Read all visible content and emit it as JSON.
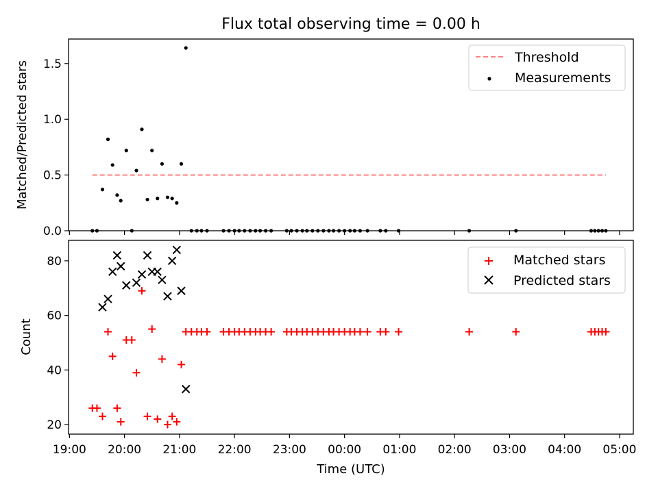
{
  "figure": {
    "title": "Flux total observing time = 0.00 h",
    "xlabel": "Time (UTC)"
  },
  "chart_data": [
    {
      "type": "scatter",
      "ylabel": "Matched/Predicted stars",
      "ylim": [
        0,
        1.72
      ],
      "yticks": [
        0.0,
        0.5,
        1.0,
        1.5
      ],
      "ytick_labels": [
        "0.0",
        "0.5",
        "1.0",
        "1.5"
      ],
      "legend_position": "top-right",
      "threshold": {
        "name": "Threshold",
        "value": 0.5,
        "x_start": "19:25",
        "x_end": "04:45",
        "color": "#ff7f7f",
        "style": "dashed"
      },
      "series": [
        {
          "name": "Measurements",
          "marker": "dot",
          "color": "#000000",
          "points": [
            [
              "19:25",
              0.0
            ],
            [
              "19:30",
              0.0
            ],
            [
              "19:36",
              0.37
            ],
            [
              "19:42",
              0.82
            ],
            [
              "19:47",
              0.59
            ],
            [
              "19:52",
              0.32
            ],
            [
              "19:56",
              0.27
            ],
            [
              "20:02",
              0.72
            ],
            [
              "20:08",
              0.0
            ],
            [
              "20:13",
              0.54
            ],
            [
              "20:19",
              0.91
            ],
            [
              "20:25",
              0.28
            ],
            [
              "20:30",
              0.72
            ],
            [
              "20:36",
              0.29
            ],
            [
              "20:41",
              0.6
            ],
            [
              "20:47",
              0.3
            ],
            [
              "20:52",
              0.29
            ],
            [
              "20:57",
              0.25
            ],
            [
              "21:02",
              0.6
            ],
            [
              "21:07",
              1.64
            ],
            [
              "21:13",
              0.0
            ],
            [
              "21:19",
              0.0
            ],
            [
              "21:24",
              0.0
            ],
            [
              "21:30",
              0.0
            ],
            [
              "21:48",
              0.0
            ],
            [
              "21:54",
              0.0
            ],
            [
              "22:00",
              0.0
            ],
            [
              "22:05",
              0.0
            ],
            [
              "22:11",
              0.0
            ],
            [
              "22:17",
              0.0
            ],
            [
              "22:23",
              0.0
            ],
            [
              "22:28",
              0.0
            ],
            [
              "22:34",
              0.0
            ],
            [
              "22:40",
              0.0
            ],
            [
              "22:57",
              0.0
            ],
            [
              "23:02",
              0.0
            ],
            [
              "23:08",
              0.0
            ],
            [
              "23:14",
              0.0
            ],
            [
              "23:19",
              0.0
            ],
            [
              "23:25",
              0.0
            ],
            [
              "23:31",
              0.0
            ],
            [
              "23:37",
              0.0
            ],
            [
              "23:43",
              0.0
            ],
            [
              "23:48",
              0.0
            ],
            [
              "23:54",
              0.0
            ],
            [
              "00:00",
              0.0
            ],
            [
              "00:06",
              0.0
            ],
            [
              "00:11",
              0.0
            ],
            [
              "00:17",
              0.0
            ],
            [
              "00:25",
              0.0
            ],
            [
              "00:39",
              0.0
            ],
            [
              "00:45",
              0.0
            ],
            [
              "00:59",
              0.0
            ],
            [
              "02:16",
              0.0
            ],
            [
              "03:07",
              0.0
            ],
            [
              "04:29",
              0.0
            ],
            [
              "04:33",
              0.0
            ],
            [
              "04:37",
              0.0
            ],
            [
              "04:41",
              0.0
            ],
            [
              "04:45",
              0.0
            ]
          ]
        }
      ]
    },
    {
      "type": "scatter",
      "ylabel": "Count",
      "ylim": [
        16.5,
        87.5
      ],
      "yticks": [
        20,
        40,
        60,
        80
      ],
      "ytick_labels": [
        "20",
        "40",
        "60",
        "80"
      ],
      "xlim": [
        "19:00",
        "05:15"
      ],
      "xticks": [
        "19:00",
        "20:00",
        "21:00",
        "22:00",
        "23:00",
        "00:00",
        "01:00",
        "02:00",
        "03:00",
        "04:00",
        "05:00"
      ],
      "xtick_labels": [
        "19:00",
        "20:00",
        "21:00",
        "22:00",
        "23:00",
        "00:00",
        "01:00",
        "02:00",
        "03:00",
        "04:00",
        "05:00"
      ],
      "legend_position": "top-right",
      "series": [
        {
          "name": "Matched stars",
          "marker": "plus",
          "color": "#ff0000",
          "points": [
            [
              "19:25",
              26
            ],
            [
              "19:30",
              26
            ],
            [
              "19:36",
              23
            ],
            [
              "19:42",
              54
            ],
            [
              "19:47",
              45
            ],
            [
              "19:52",
              26
            ],
            [
              "19:56",
              21
            ],
            [
              "20:02",
              51
            ],
            [
              "20:08",
              51
            ],
            [
              "20:13",
              39
            ],
            [
              "20:19",
              69
            ],
            [
              "20:25",
              23
            ],
            [
              "20:30",
              55
            ],
            [
              "20:36",
              22
            ],
            [
              "20:41",
              44
            ],
            [
              "20:47",
              20
            ],
            [
              "20:52",
              23
            ],
            [
              "20:57",
              21
            ],
            [
              "21:02",
              42
            ],
            [
              "21:07",
              54
            ],
            [
              "21:13",
              54
            ],
            [
              "21:19",
              54
            ],
            [
              "21:24",
              54
            ],
            [
              "21:30",
              54
            ],
            [
              "21:48",
              54
            ],
            [
              "21:54",
              54
            ],
            [
              "22:00",
              54
            ],
            [
              "22:05",
              54
            ],
            [
              "22:11",
              54
            ],
            [
              "22:17",
              54
            ],
            [
              "22:23",
              54
            ],
            [
              "22:28",
              54
            ],
            [
              "22:34",
              54
            ],
            [
              "22:40",
              54
            ],
            [
              "22:57",
              54
            ],
            [
              "23:02",
              54
            ],
            [
              "23:08",
              54
            ],
            [
              "23:14",
              54
            ],
            [
              "23:19",
              54
            ],
            [
              "23:25",
              54
            ],
            [
              "23:31",
              54
            ],
            [
              "23:37",
              54
            ],
            [
              "23:43",
              54
            ],
            [
              "23:48",
              54
            ],
            [
              "23:54",
              54
            ],
            [
              "00:00",
              54
            ],
            [
              "00:06",
              54
            ],
            [
              "00:11",
              54
            ],
            [
              "00:17",
              54
            ],
            [
              "00:25",
              54
            ],
            [
              "00:39",
              54
            ],
            [
              "00:45",
              54
            ],
            [
              "00:59",
              54
            ],
            [
              "02:16",
              54
            ],
            [
              "03:07",
              54
            ],
            [
              "04:29",
              54
            ],
            [
              "04:33",
              54
            ],
            [
              "04:37",
              54
            ],
            [
              "04:41",
              54
            ],
            [
              "04:45",
              54
            ]
          ]
        },
        {
          "name": "Predicted stars",
          "marker": "x",
          "color": "#000000",
          "points": [
            [
              "19:36",
              63
            ],
            [
              "19:42",
              66
            ],
            [
              "19:47",
              76
            ],
            [
              "19:52",
              82
            ],
            [
              "19:56",
              78
            ],
            [
              "20:02",
              71
            ],
            [
              "20:13",
              72
            ],
            [
              "20:19",
              75
            ],
            [
              "20:25",
              82
            ],
            [
              "20:30",
              76
            ],
            [
              "20:36",
              76
            ],
            [
              "20:41",
              73
            ],
            [
              "20:47",
              67
            ],
            [
              "20:52",
              80
            ],
            [
              "20:57",
              84
            ],
            [
              "21:02",
              69
            ],
            [
              "21:07",
              33
            ]
          ]
        }
      ]
    }
  ]
}
